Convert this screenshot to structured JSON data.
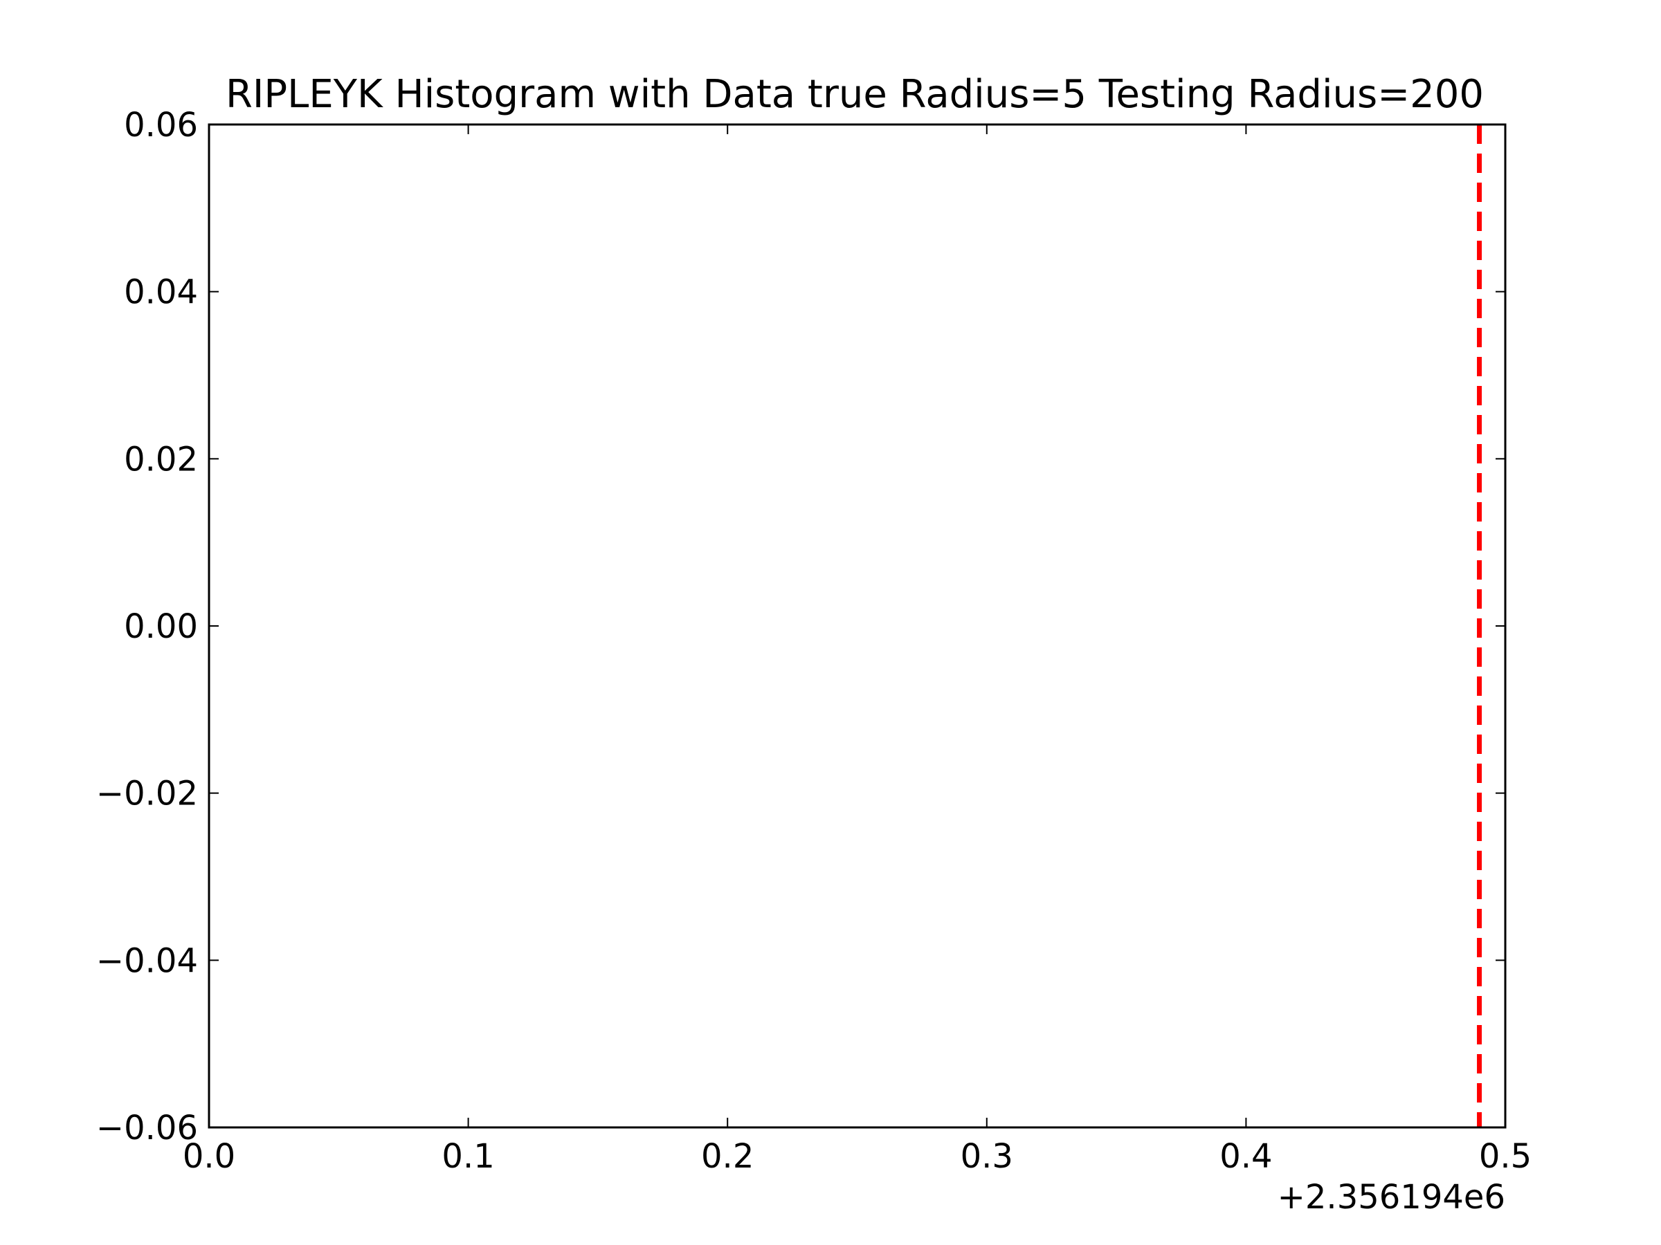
{
  "chart_data": {
    "type": "bar",
    "title": "RIPLEYK Histogram with Data true Radius=5 Testing Radius=200",
    "xlabel": "",
    "ylabel": "",
    "xlim": [
      0.0,
      0.5
    ],
    "ylim": [
      -0.06,
      0.06
    ],
    "x_offset_label": "+2.356194e6",
    "x_ticks": [
      {
        "value": 0.0,
        "label": "0.0"
      },
      {
        "value": 0.1,
        "label": "0.1"
      },
      {
        "value": 0.2,
        "label": "0.2"
      },
      {
        "value": 0.3,
        "label": "0.3"
      },
      {
        "value": 0.4,
        "label": "0.4"
      },
      {
        "value": 0.5,
        "label": "0.5"
      }
    ],
    "y_ticks": [
      {
        "value": 0.06,
        "label": "0.06"
      },
      {
        "value": 0.04,
        "label": "0.04"
      },
      {
        "value": 0.02,
        "label": "0.02"
      },
      {
        "value": 0.0,
        "label": "0.00"
      },
      {
        "value": -0.02,
        "label": "−0.02"
      },
      {
        "value": -0.04,
        "label": "−0.04"
      },
      {
        "value": -0.06,
        "label": "−0.06"
      }
    ],
    "bars": [],
    "reference_line": {
      "x": 0.49,
      "color": "#ff0000",
      "style": "dashed"
    },
    "grid": false,
    "legend": "none"
  }
}
